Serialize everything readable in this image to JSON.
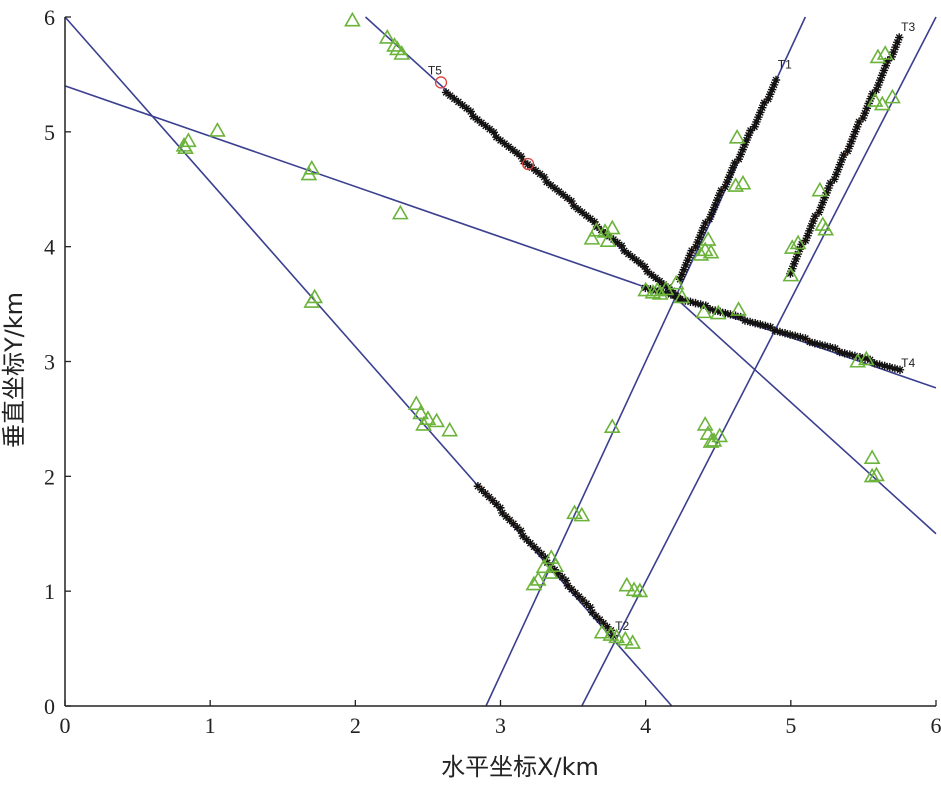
{
  "chart_data": {
    "type": "scatter",
    "title": "",
    "xlabel": "水平坐标X/km",
    "ylabel": "垂直坐标Y/km",
    "xlim": [
      0,
      6
    ],
    "ylim": [
      0,
      6
    ],
    "xticks": [
      0,
      1,
      2,
      3,
      4,
      5,
      6
    ],
    "yticks": [
      0,
      1,
      2,
      3,
      4,
      5,
      6
    ],
    "grid": false,
    "legend": "none",
    "colors": {
      "line": "#3a3f8f",
      "triangle": "#6bb33a",
      "star": "#111111",
      "circle": "#e0403a",
      "axis": "#222222"
    },
    "lines": [
      {
        "x": [
          0,
          4.18
        ],
        "y": [
          6.0,
          0.0
        ]
      },
      {
        "x": [
          0,
          6.0
        ],
        "y": [
          5.4,
          2.77
        ]
      },
      {
        "x": [
          2.07,
          6.0
        ],
        "y": [
          6.0,
          1.5
        ]
      },
      {
        "x": [
          2.9,
          5.1
        ],
        "y": [
          0.0,
          6.0
        ]
      },
      {
        "x": [
          3.56,
          6.0
        ],
        "y": [
          0.0,
          6.0
        ]
      }
    ],
    "tracks": [
      {
        "label": "T1",
        "x": [
          4.23,
          4.9
        ],
        "y": [
          3.72,
          5.45
        ],
        "label_x": 4.91,
        "label_y": 5.55
      },
      {
        "label": "T2",
        "x": [
          2.85,
          3.78
        ],
        "y": [
          1.92,
          0.62
        ],
        "label_x": 3.79,
        "label_y": 0.66
      },
      {
        "label": "T3",
        "x": [
          4.99,
          5.75
        ],
        "y": [
          3.77,
          5.82
        ],
        "label_x": 5.76,
        "label_y": 5.88
      },
      {
        "label": "T4",
        "x": [
          4.0,
          5.75
        ],
        "y": [
          3.65,
          2.92
        ],
        "label_x": 5.76,
        "label_y": 2.95
      },
      {
        "label": "T5",
        "x": [
          2.63,
          4.23
        ],
        "y": [
          5.35,
          3.55
        ],
        "label_x": 2.5,
        "label_y": 5.5
      }
    ],
    "triangles": [
      [
        1.98,
        5.97
      ],
      [
        2.22,
        5.82
      ],
      [
        2.27,
        5.75
      ],
      [
        2.29,
        5.72
      ],
      [
        2.32,
        5.68
      ],
      [
        1.05,
        5.01
      ],
      [
        0.85,
        4.92
      ],
      [
        0.82,
        4.88
      ],
      [
        0.83,
        4.86
      ],
      [
        1.7,
        4.68
      ],
      [
        1.68,
        4.63
      ],
      [
        2.31,
        4.29
      ],
      [
        1.72,
        3.56
      ],
      [
        1.7,
        3.52
      ],
      [
        2.42,
        2.63
      ],
      [
        2.45,
        2.55
      ],
      [
        2.5,
        2.5
      ],
      [
        2.47,
        2.45
      ],
      [
        2.56,
        2.48
      ],
      [
        2.65,
        2.4
      ],
      [
        3.51,
        1.68
      ],
      [
        3.56,
        1.66
      ],
      [
        3.77,
        2.43
      ],
      [
        3.35,
        1.29
      ],
      [
        3.38,
        1.22
      ],
      [
        3.3,
        1.21
      ],
      [
        3.34,
        1.16
      ],
      [
        3.26,
        1.1
      ],
      [
        3.23,
        1.06
      ],
      [
        3.87,
        1.05
      ],
      [
        3.92,
        1.01
      ],
      [
        3.96,
        1.0
      ],
      [
        3.7,
        0.64
      ],
      [
        3.76,
        0.62
      ],
      [
        3.8,
        0.6
      ],
      [
        3.86,
        0.58
      ],
      [
        3.91,
        0.55
      ],
      [
        4.41,
        2.45
      ],
      [
        4.43,
        2.37
      ],
      [
        4.47,
        2.31
      ],
      [
        4.45,
        2.3
      ],
      [
        4.51,
        2.35
      ],
      [
        5.56,
        2.16
      ],
      [
        5.56,
        2.0
      ],
      [
        5.59,
        2.01
      ],
      [
        4.63,
        4.95
      ],
      [
        4.67,
        4.55
      ],
      [
        4.62,
        4.53
      ],
      [
        4.43,
        4.06
      ],
      [
        4.41,
        3.97
      ],
      [
        4.38,
        3.93
      ],
      [
        4.45,
        3.95
      ],
      [
        4.0,
        3.62
      ],
      [
        4.05,
        3.6
      ],
      [
        4.08,
        3.62
      ],
      [
        4.1,
        3.59
      ],
      [
        4.14,
        3.63
      ],
      [
        4.21,
        3.68
      ],
      [
        4.25,
        3.56
      ],
      [
        4.4,
        3.43
      ],
      [
        4.5,
        3.42
      ],
      [
        4.64,
        3.45
      ],
      [
        3.72,
        4.13
      ],
      [
        3.77,
        4.16
      ],
      [
        3.74,
        4.05
      ],
      [
        3.63,
        4.07
      ],
      [
        3.66,
        4.14
      ],
      [
        5.01,
        3.99
      ],
      [
        5.05,
        4.03
      ],
      [
        5.0,
        3.75
      ],
      [
        5.22,
        4.19
      ],
      [
        5.24,
        4.15
      ],
      [
        5.2,
        4.49
      ],
      [
        5.58,
        5.27
      ],
      [
        5.63,
        5.24
      ],
      [
        5.7,
        5.3
      ],
      [
        5.65,
        5.68
      ],
      [
        5.6,
        5.65
      ],
      [
        5.46,
        3.0
      ],
      [
        5.52,
        3.02
      ]
    ],
    "circles": [
      [
        2.59,
        5.43
      ],
      [
        3.19,
        4.72
      ]
    ]
  }
}
